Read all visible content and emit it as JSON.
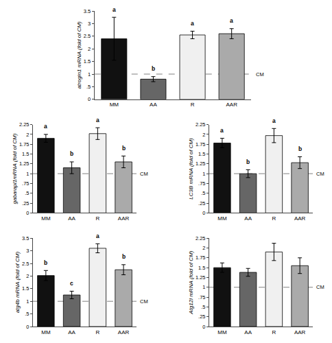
{
  "chart_data": [
    {
      "type": "bar",
      "categories": [
        "MM",
        "AA",
        "R",
        "AAR"
      ],
      "values": [
        2.4,
        0.8,
        2.55,
        2.6
      ],
      "errors": [
        0.85,
        0.1,
        0.15,
        0.2
      ],
      "colors": [
        "#111111",
        "#666666",
        "#f0f0f0",
        "#aaaaaa"
      ],
      "ylabel": "atrogin1 mRNA (fold of CM)",
      "ylim": [
        0,
        3.5
      ],
      "yticks": [
        0,
        {
          "value": 0.5,
          "label": ".5"
        },
        1,
        1.5,
        2,
        2.5,
        3,
        3.5
      ],
      "grid": false,
      "annotations": [
        {
          "text": "CM",
          "y": 1.0,
          "line_style": "dashed"
        },
        {
          "text": "a",
          "category": "MM"
        },
        {
          "text": "b",
          "category": "AA"
        },
        {
          "text": "a",
          "category": "R"
        },
        {
          "text": "a",
          "category": "AAR"
        }
      ]
    },
    {
      "type": "bar",
      "categories": [
        "MM",
        "AA",
        "R",
        "AAR"
      ],
      "values": [
        1.9,
        1.15,
        2.02,
        1.3
      ],
      "errors": [
        0.1,
        0.15,
        0.15,
        0.15
      ],
      "colors": [
        "#111111",
        "#666666",
        "#f0f0f0",
        "#aaaaaa"
      ],
      "ylabel": "gabarapl1mRNA (fold of CM)",
      "ylim": [
        0,
        2.25
      ],
      "yticks": [
        0,
        {
          "value": 0.25,
          "label": ".25"
        },
        {
          "value": 0.5,
          "label": ".5"
        },
        {
          "value": 0.75,
          "label": ".75"
        },
        1,
        1.25,
        1.5,
        1.75,
        2,
        2.25
      ],
      "grid": false,
      "annotations": [
        {
          "text": "CM",
          "y": 1.0,
          "line_style": "dashed"
        },
        {
          "text": "a",
          "category": "MM"
        },
        {
          "text": "b",
          "category": "AA"
        },
        {
          "text": "a",
          "category": "R"
        },
        {
          "text": "b",
          "category": "AAR"
        }
      ]
    },
    {
      "type": "bar",
      "categories": [
        "MM",
        "AA",
        "R",
        "AAR"
      ],
      "values": [
        1.78,
        1.0,
        1.97,
        1.28
      ],
      "errors": [
        0.12,
        0.1,
        0.18,
        0.15
      ],
      "colors": [
        "#111111",
        "#666666",
        "#f0f0f0",
        "#aaaaaa"
      ],
      "ylabel": "LC3B mRNA (fold of CM)",
      "ylim": [
        0,
        2.25
      ],
      "yticks": [
        0,
        {
          "value": 0.25,
          "label": ".25"
        },
        {
          "value": 0.5,
          "label": ".5"
        },
        {
          "value": 0.75,
          "label": ".75"
        },
        1,
        1.25,
        1.5,
        1.75,
        2,
        2.25
      ],
      "grid": false,
      "annotations": [
        {
          "text": "CM",
          "y": 1.0,
          "line_style": "dashed"
        },
        {
          "text": "a",
          "category": "MM"
        },
        {
          "text": "b",
          "category": "AA"
        },
        {
          "text": "a",
          "category": "R"
        },
        {
          "text": "b",
          "category": "AAR"
        }
      ]
    },
    {
      "type": "bar",
      "categories": [
        "MM",
        "AA",
        "R",
        "AAR"
      ],
      "values": [
        2.02,
        1.25,
        3.1,
        2.25
      ],
      "errors": [
        0.2,
        0.15,
        0.18,
        0.2
      ],
      "colors": [
        "#111111",
        "#666666",
        "#f0f0f0",
        "#aaaaaa"
      ],
      "ylabel": "atg4b mRNA (fold of CM)",
      "ylim": [
        0,
        3.5
      ],
      "yticks": [
        0,
        {
          "value": 0.5,
          "label": ".5"
        },
        1,
        1.5,
        2,
        2.5,
        3,
        3.5
      ],
      "grid": false,
      "annotations": [
        {
          "text": "CM",
          "y": 1.0,
          "line_style": "dashed"
        },
        {
          "text": "b",
          "category": "MM"
        },
        {
          "text": "c",
          "category": "AA"
        },
        {
          "text": "a",
          "category": "R"
        },
        {
          "text": "b",
          "category": "AAR"
        }
      ]
    },
    {
      "type": "bar",
      "categories": [
        "MM",
        "AA",
        "R",
        "AAR"
      ],
      "values": [
        1.5,
        1.38,
        1.9,
        1.55
      ],
      "errors": [
        0.12,
        0.1,
        0.22,
        0.2
      ],
      "colors": [
        "#111111",
        "#666666",
        "#f0f0f0",
        "#aaaaaa"
      ],
      "ylabel": "Atg12l mRNA (fold of CM)",
      "ylim": [
        0,
        2.25
      ],
      "yticks": [
        0,
        {
          "value": 0.25,
          "label": ".25"
        },
        {
          "value": 0.5,
          "label": ".5"
        },
        {
          "value": 0.75,
          "label": ".75"
        },
        1,
        1.25,
        1.5,
        1.75,
        2,
        2.25
      ],
      "grid": false,
      "annotations": [
        {
          "text": "CM",
          "y": 1.0,
          "line_style": "dashed"
        }
      ]
    }
  ]
}
